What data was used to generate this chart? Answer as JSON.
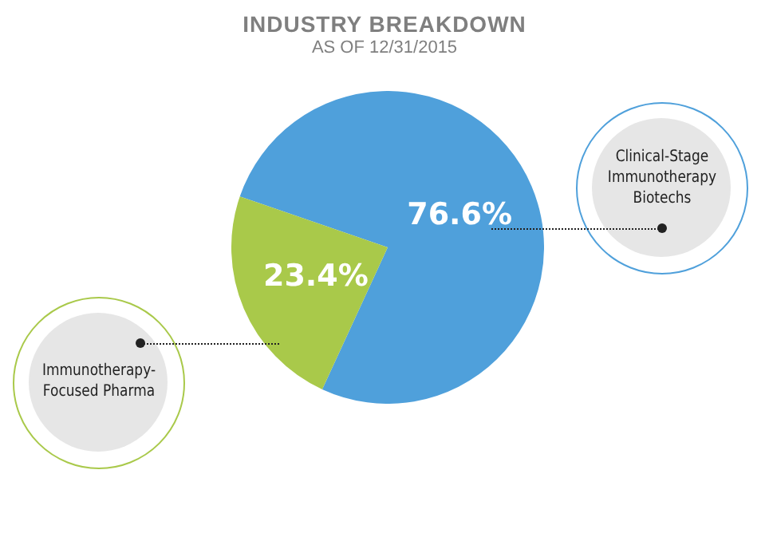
{
  "chart_data": {
    "type": "pie",
    "title": "INDUSTRY BREAKDOWN",
    "subtitle": "AS OF 12/31/2015",
    "categories": [
      "Clinical-Stage Immunotherapy Biotechs",
      "Immunotherapy-Focused Pharma"
    ],
    "values": [
      76.6,
      23.4
    ],
    "colors": [
      "#4fa0db",
      "#a9c94a"
    ],
    "value_labels": [
      "76.6%",
      "23.4%"
    ],
    "legend": false
  }
}
